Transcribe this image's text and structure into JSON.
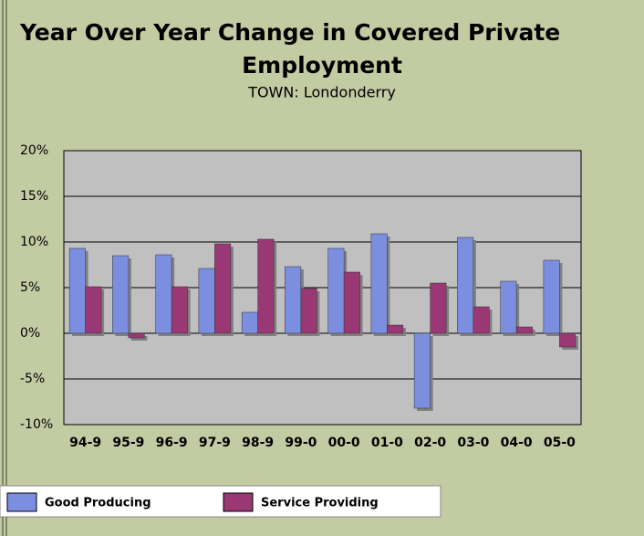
{
  "chart_data": {
    "type": "bar",
    "title": [
      "Year Over Year Change in Covered Private",
      "Employment"
    ],
    "subtitle": "TOWN: Londonderry",
    "categories": [
      "94-9",
      "95-9",
      "96-9",
      "97-9",
      "98-9",
      "99-0",
      "00-0",
      "01-0",
      "02-0",
      "03-0",
      "04-0",
      "05-0"
    ],
    "series": [
      {
        "name": "Good Producing",
        "color": "#7b8ee0",
        "values": [
          9.3,
          8.5,
          8.6,
          7.1,
          2.3,
          7.3,
          9.3,
          10.9,
          -8.2,
          10.5,
          5.7,
          8.0
        ]
      },
      {
        "name": "Service Providing",
        "color": "#993875",
        "values": [
          5.1,
          -0.5,
          5.1,
          9.8,
          10.3,
          4.9,
          6.7,
          0.9,
          5.5,
          2.9,
          0.7,
          -1.5
        ]
      }
    ],
    "ylim": [
      -10,
      20
    ],
    "yticks": [
      {
        "value": -10,
        "label": "-10%"
      },
      {
        "value": -5,
        "label": "-5%"
      },
      {
        "value": 0,
        "label": "0%"
      },
      {
        "value": 5,
        "label": "5%"
      },
      {
        "value": 10,
        "label": "10%"
      },
      {
        "value": 15,
        "label": "15%"
      },
      {
        "value": 20,
        "label": "20%"
      }
    ],
    "grid": true
  }
}
